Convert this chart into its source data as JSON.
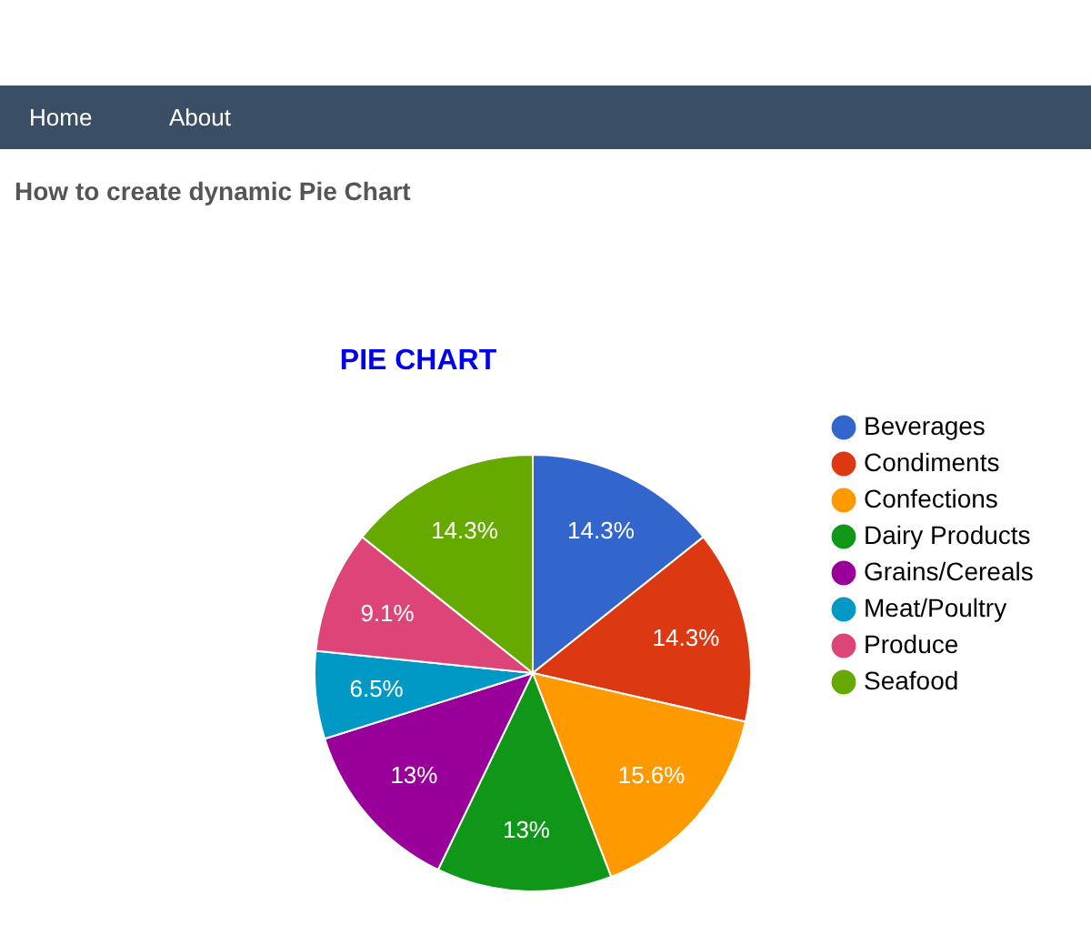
{
  "chart_data": {
    "type": "pie",
    "title": "PIE CHART",
    "annotations": [
      "Home",
      "About",
      "How to create dynamic Pie Chart"
    ],
    "categories": [
      "Beverages",
      "Condiments",
      "Confections",
      "Dairy Products",
      "Grains/Cereals",
      "Meat/Poultry",
      "Produce",
      "Seafood"
    ],
    "values": [
      14.3,
      14.3,
      15.6,
      13,
      13,
      6.5,
      9.1,
      14.3
    ],
    "colors": [
      "#3366cc",
      "#dc3912",
      "#ff9900",
      "#109618",
      "#990099",
      "#0099c6",
      "#dd4477",
      "#66aa00"
    ],
    "value_labels": [
      "14.3%",
      "14.3%",
      "15.6%",
      "13%",
      "13%",
      "6.5%",
      "9.1%",
      "14.3%"
    ],
    "legend": "right"
  }
}
